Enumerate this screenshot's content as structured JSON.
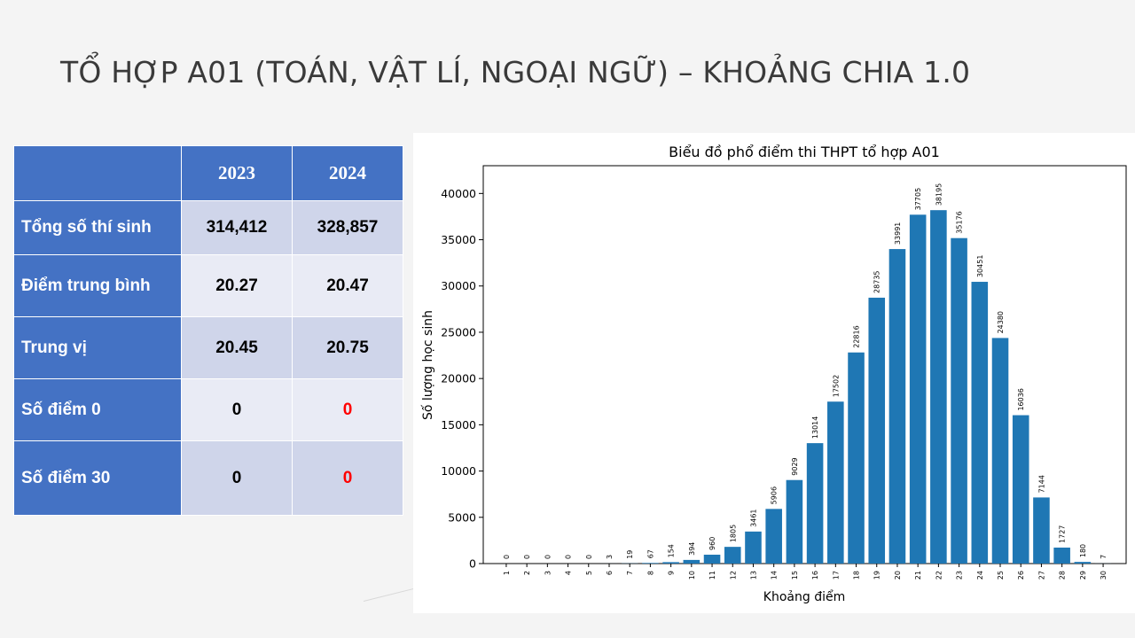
{
  "title": "TỔ HỢP A01 (TOÁN, VẬT LÍ, NGOẠI NGỮ) – KHOẢNG CHIA 1.0",
  "table": {
    "years": [
      "2023",
      "2024"
    ],
    "rows": [
      {
        "label": "Tổng số thí sinh",
        "v2023": "314,412",
        "v2024": "328,857"
      },
      {
        "label": "Điểm trung bình",
        "v2023": "20.27",
        "v2024": "20.47"
      },
      {
        "label": "Trung vị",
        "v2023": "20.45",
        "v2024": "20.75"
      },
      {
        "label": "Số điểm 0",
        "v2023": "0",
        "v2024": "0"
      },
      {
        "label": "Số điểm 30",
        "v2023": "0",
        "v2024": "0"
      }
    ],
    "highlight_color": "#ff0000"
  },
  "chart_data": {
    "type": "bar",
    "title": "Biểu đồ phổ điểm thi THPT tổ hợp A01",
    "xlabel": "Khoảng điểm",
    "ylabel": "Số lượng học sinh",
    "categories": [
      "1",
      "2",
      "3",
      "4",
      "5",
      "6",
      "7",
      "8",
      "9",
      "10",
      "11",
      "12",
      "13",
      "14",
      "15",
      "16",
      "17",
      "18",
      "19",
      "20",
      "21",
      "22",
      "23",
      "24",
      "25",
      "26",
      "27",
      "28",
      "29",
      "30"
    ],
    "values": [
      0,
      0,
      0,
      0,
      0,
      3,
      19,
      67,
      154,
      394,
      960,
      1805,
      3461,
      5906,
      9029,
      13014,
      17502,
      22816,
      28735,
      33991,
      37705,
      38195,
      35176,
      30451,
      24380,
      16036,
      7144,
      1727,
      180,
      7
    ],
    "ylim": [
      0,
      43000
    ],
    "yticks": [
      0,
      5000,
      10000,
      15000,
      20000,
      25000,
      30000,
      35000,
      40000
    ],
    "bar_color": "#1f77b4",
    "grid": false,
    "legend": "none"
  }
}
